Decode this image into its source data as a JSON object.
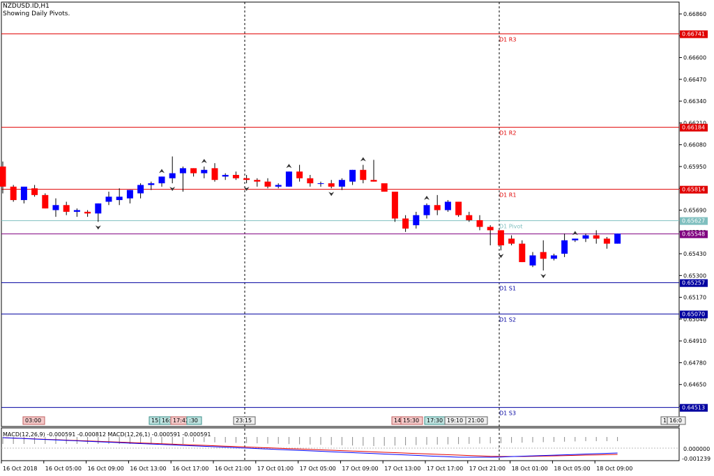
{
  "header": {
    "symbol": "NZDUSD.ID,H1",
    "subtitle": "Showing Daily Pivots."
  },
  "colors": {
    "bull": "#0000ff",
    "bear": "#ff0000",
    "resistance": "#e00000",
    "support": "#0000a0",
    "pivot": "#7fbfbf",
    "current": "#800080"
  },
  "price_axis": [
    "0.66860",
    "0.66730",
    "0.66600",
    "0.66470",
    "0.66340",
    "0.66210",
    "0.66080",
    "0.65950",
    "0.65820",
    "0.65690",
    "0.65560",
    "0.65430",
    "0.65300",
    "0.65170",
    "0.65040",
    "0.64910",
    "0.64780",
    "0.64650",
    "0.64520"
  ],
  "pivots": [
    {
      "label": "D1 R3",
      "value": "0.66741",
      "kind": "resistance"
    },
    {
      "label": "D1 R2",
      "value": "0.66184",
      "kind": "resistance"
    },
    {
      "label": "D1 R1",
      "value": "0.65814",
      "kind": "resistance"
    },
    {
      "label": "D1 Pivot",
      "value": "0.65627",
      "kind": "pivot"
    },
    {
      "label": "D1 S1",
      "value": "0.65257",
      "kind": "support"
    },
    {
      "label": "D1 S2",
      "value": "0.65070",
      "kind": "support"
    },
    {
      "label": "D1 S3",
      "value": "0.64513",
      "kind": "support"
    }
  ],
  "current_price": "0.65548",
  "time_axis": [
    "16 Oct 2018",
    "16 Oct 05:00",
    "16 Oct 09:00",
    "16 Oct 13:00",
    "16 Oct 17:00",
    "16 Oct 21:00",
    "17 Oct 01:00",
    "17 Oct 05:00",
    "17 Oct 09:00",
    "17 Oct 13:00",
    "17 Oct 17:00",
    "17 Oct 21:00",
    "18 Oct 01:00",
    "18 Oct 05:00",
    "18 Oct 09:00"
  ],
  "event_tags": [
    {
      "text": "03:00",
      "style": "red"
    },
    {
      "text": "15:",
      "style": "teal"
    },
    {
      "text": "16:",
      "style": "teal"
    },
    {
      "text": "17:42",
      "style": "red"
    },
    {
      "text": ":30",
      "style": "teal"
    },
    {
      "text": "23:15",
      "style": "gray"
    },
    {
      "text": "14:",
      "style": "red"
    },
    {
      "text": "15:30",
      "style": "red"
    },
    {
      "text": "17:30",
      "style": "teal"
    },
    {
      "text": "19:10",
      "style": "gray"
    },
    {
      "text": "21:00",
      "style": "gray"
    },
    {
      "text": "1",
      "style": "gray"
    },
    {
      "text": "16:0",
      "style": "gray"
    }
  ],
  "macd": {
    "label": "MACD(12,26,9) -0.000591 -0.000812 MACD(12,26,1) -0.000591 -0.000591",
    "axis": [
      "0.000000",
      "-0.001239"
    ]
  },
  "chart_data": {
    "type": "candlestick",
    "symbol": "NZDUSD.ID,H1",
    "candles": [
      {
        "o": 0.6595,
        "h": 0.6598,
        "l": 0.6579,
        "c": 0.6583
      },
      {
        "o": 0.6583,
        "h": 0.6584,
        "l": 0.6574,
        "c": 0.6575
      },
      {
        "o": 0.6575,
        "h": 0.6582,
        "l": 0.6573,
        "c": 0.6583
      },
      {
        "o": 0.6582,
        "h": 0.6584,
        "l": 0.6577,
        "c": 0.6578
      },
      {
        "o": 0.6578,
        "h": 0.6579,
        "l": 0.657,
        "c": 0.657
      },
      {
        "o": 0.6569,
        "h": 0.6576,
        "l": 0.6565,
        "c": 0.6572
      },
      {
        "o": 0.6572,
        "h": 0.6574,
        "l": 0.6566,
        "c": 0.6568
      },
      {
        "o": 0.6568,
        "h": 0.657,
        "l": 0.6565,
        "c": 0.6569
      },
      {
        "o": 0.6568,
        "h": 0.6569,
        "l": 0.6565,
        "c": 0.6567
      },
      {
        "o": 0.6567,
        "h": 0.6573,
        "l": 0.6562,
        "c": 0.6573
      },
      {
        "o": 0.6574,
        "h": 0.658,
        "l": 0.6572,
        "c": 0.6577
      },
      {
        "o": 0.6575,
        "h": 0.6582,
        "l": 0.6572,
        "c": 0.6577
      },
      {
        "o": 0.6576,
        "h": 0.6581,
        "l": 0.6573,
        "c": 0.6581
      },
      {
        "o": 0.6579,
        "h": 0.6585,
        "l": 0.6576,
        "c": 0.6584
      },
      {
        "o": 0.6584,
        "h": 0.6586,
        "l": 0.6581,
        "c": 0.6585
      },
      {
        "o": 0.6585,
        "h": 0.6589,
        "l": 0.6583,
        "c": 0.6589
      },
      {
        "o": 0.6588,
        "h": 0.6601,
        "l": 0.6585,
        "c": 0.6591
      },
      {
        "o": 0.6591,
        "h": 0.6595,
        "l": 0.658,
        "c": 0.6594
      },
      {
        "o": 0.6594,
        "h": 0.6594,
        "l": 0.6589,
        "c": 0.6591
      },
      {
        "o": 0.6591,
        "h": 0.6595,
        "l": 0.6588,
        "c": 0.6593
      },
      {
        "o": 0.6594,
        "h": 0.6597,
        "l": 0.6586,
        "c": 0.6587
      },
      {
        "o": 0.6589,
        "h": 0.6591,
        "l": 0.6587,
        "c": 0.659
      },
      {
        "o": 0.659,
        "h": 0.6592,
        "l": 0.6587,
        "c": 0.6588
      },
      {
        "o": 0.6588,
        "h": 0.659,
        "l": 0.6585,
        "c": 0.6587
      },
      {
        "o": 0.6587,
        "h": 0.6588,
        "l": 0.6583,
        "c": 0.6586
      },
      {
        "o": 0.6586,
        "h": 0.6588,
        "l": 0.6582,
        "c": 0.6583
      },
      {
        "o": 0.6583,
        "h": 0.6585,
        "l": 0.6582,
        "c": 0.6584
      },
      {
        "o": 0.6583,
        "h": 0.6592,
        "l": 0.6583,
        "c": 0.6592
      },
      {
        "o": 0.6592,
        "h": 0.6596,
        "l": 0.6586,
        "c": 0.6588
      },
      {
        "o": 0.6588,
        "h": 0.659,
        "l": 0.6583,
        "c": 0.6585
      },
      {
        "o": 0.6585,
        "h": 0.6586,
        "l": 0.6583,
        "c": 0.6585
      },
      {
        "o": 0.6585,
        "h": 0.6587,
        "l": 0.6582,
        "c": 0.6583
      },
      {
        "o": 0.6583,
        "h": 0.6588,
        "l": 0.6581,
        "c": 0.6587
      },
      {
        "o": 0.6586,
        "h": 0.6593,
        "l": 0.6584,
        "c": 0.6593
      },
      {
        "o": 0.6593,
        "h": 0.6596,
        "l": 0.6585,
        "c": 0.6587
      },
      {
        "o": 0.6587,
        "h": 0.6599,
        "l": 0.6586,
        "c": 0.6586
      },
      {
        "o": 0.6585,
        "h": 0.6585,
        "l": 0.658,
        "c": 0.658
      },
      {
        "o": 0.658,
        "h": 0.658,
        "l": 0.6562,
        "c": 0.6564
      },
      {
        "o": 0.6564,
        "h": 0.6566,
        "l": 0.6556,
        "c": 0.6558
      },
      {
        "o": 0.656,
        "h": 0.6568,
        "l": 0.6558,
        "c": 0.6566
      },
      {
        "o": 0.6566,
        "h": 0.6573,
        "l": 0.6564,
        "c": 0.6572
      },
      {
        "o": 0.6572,
        "h": 0.6578,
        "l": 0.6566,
        "c": 0.6569
      },
      {
        "o": 0.6569,
        "h": 0.6575,
        "l": 0.6568,
        "c": 0.6574
      },
      {
        "o": 0.6574,
        "h": 0.6574,
        "l": 0.6565,
        "c": 0.6566
      },
      {
        "o": 0.6566,
        "h": 0.6568,
        "l": 0.6562,
        "c": 0.6563
      },
      {
        "o": 0.6563,
        "h": 0.6566,
        "l": 0.6557,
        "c": 0.6559
      },
      {
        "o": 0.6559,
        "h": 0.656,
        "l": 0.6548,
        "c": 0.6557
      },
      {
        "o": 0.6557,
        "h": 0.6556,
        "l": 0.6545,
        "c": 0.6548
      },
      {
        "o": 0.6552,
        "h": 0.6554,
        "l": 0.6548,
        "c": 0.6549
      },
      {
        "o": 0.6549,
        "h": 0.6551,
        "l": 0.6538,
        "c": 0.6538
      },
      {
        "o": 0.6536,
        "h": 0.6544,
        "l": 0.6535,
        "c": 0.6542
      },
      {
        "o": 0.6544,
        "h": 0.6551,
        "l": 0.6533,
        "c": 0.654
      },
      {
        "o": 0.654,
        "h": 0.6543,
        "l": 0.6539,
        "c": 0.6542
      },
      {
        "o": 0.6543,
        "h": 0.6555,
        "l": 0.6541,
        "c": 0.6551
      },
      {
        "o": 0.6551,
        "h": 0.6552,
        "l": 0.655,
        "c": 0.6552
      },
      {
        "o": 0.6552,
        "h": 0.6555,
        "l": 0.655,
        "c": 0.6554
      },
      {
        "o": 0.6554,
        "h": 0.6557,
        "l": 0.6549,
        "c": 0.6552
      },
      {
        "o": 0.6552,
        "h": 0.6553,
        "l": 0.6546,
        "c": 0.6549
      },
      {
        "o": 0.6549,
        "h": 0.6555,
        "l": 0.6549,
        "c": 0.6555
      }
    ],
    "ylim": [
      0.6449,
      0.6692
    ]
  }
}
